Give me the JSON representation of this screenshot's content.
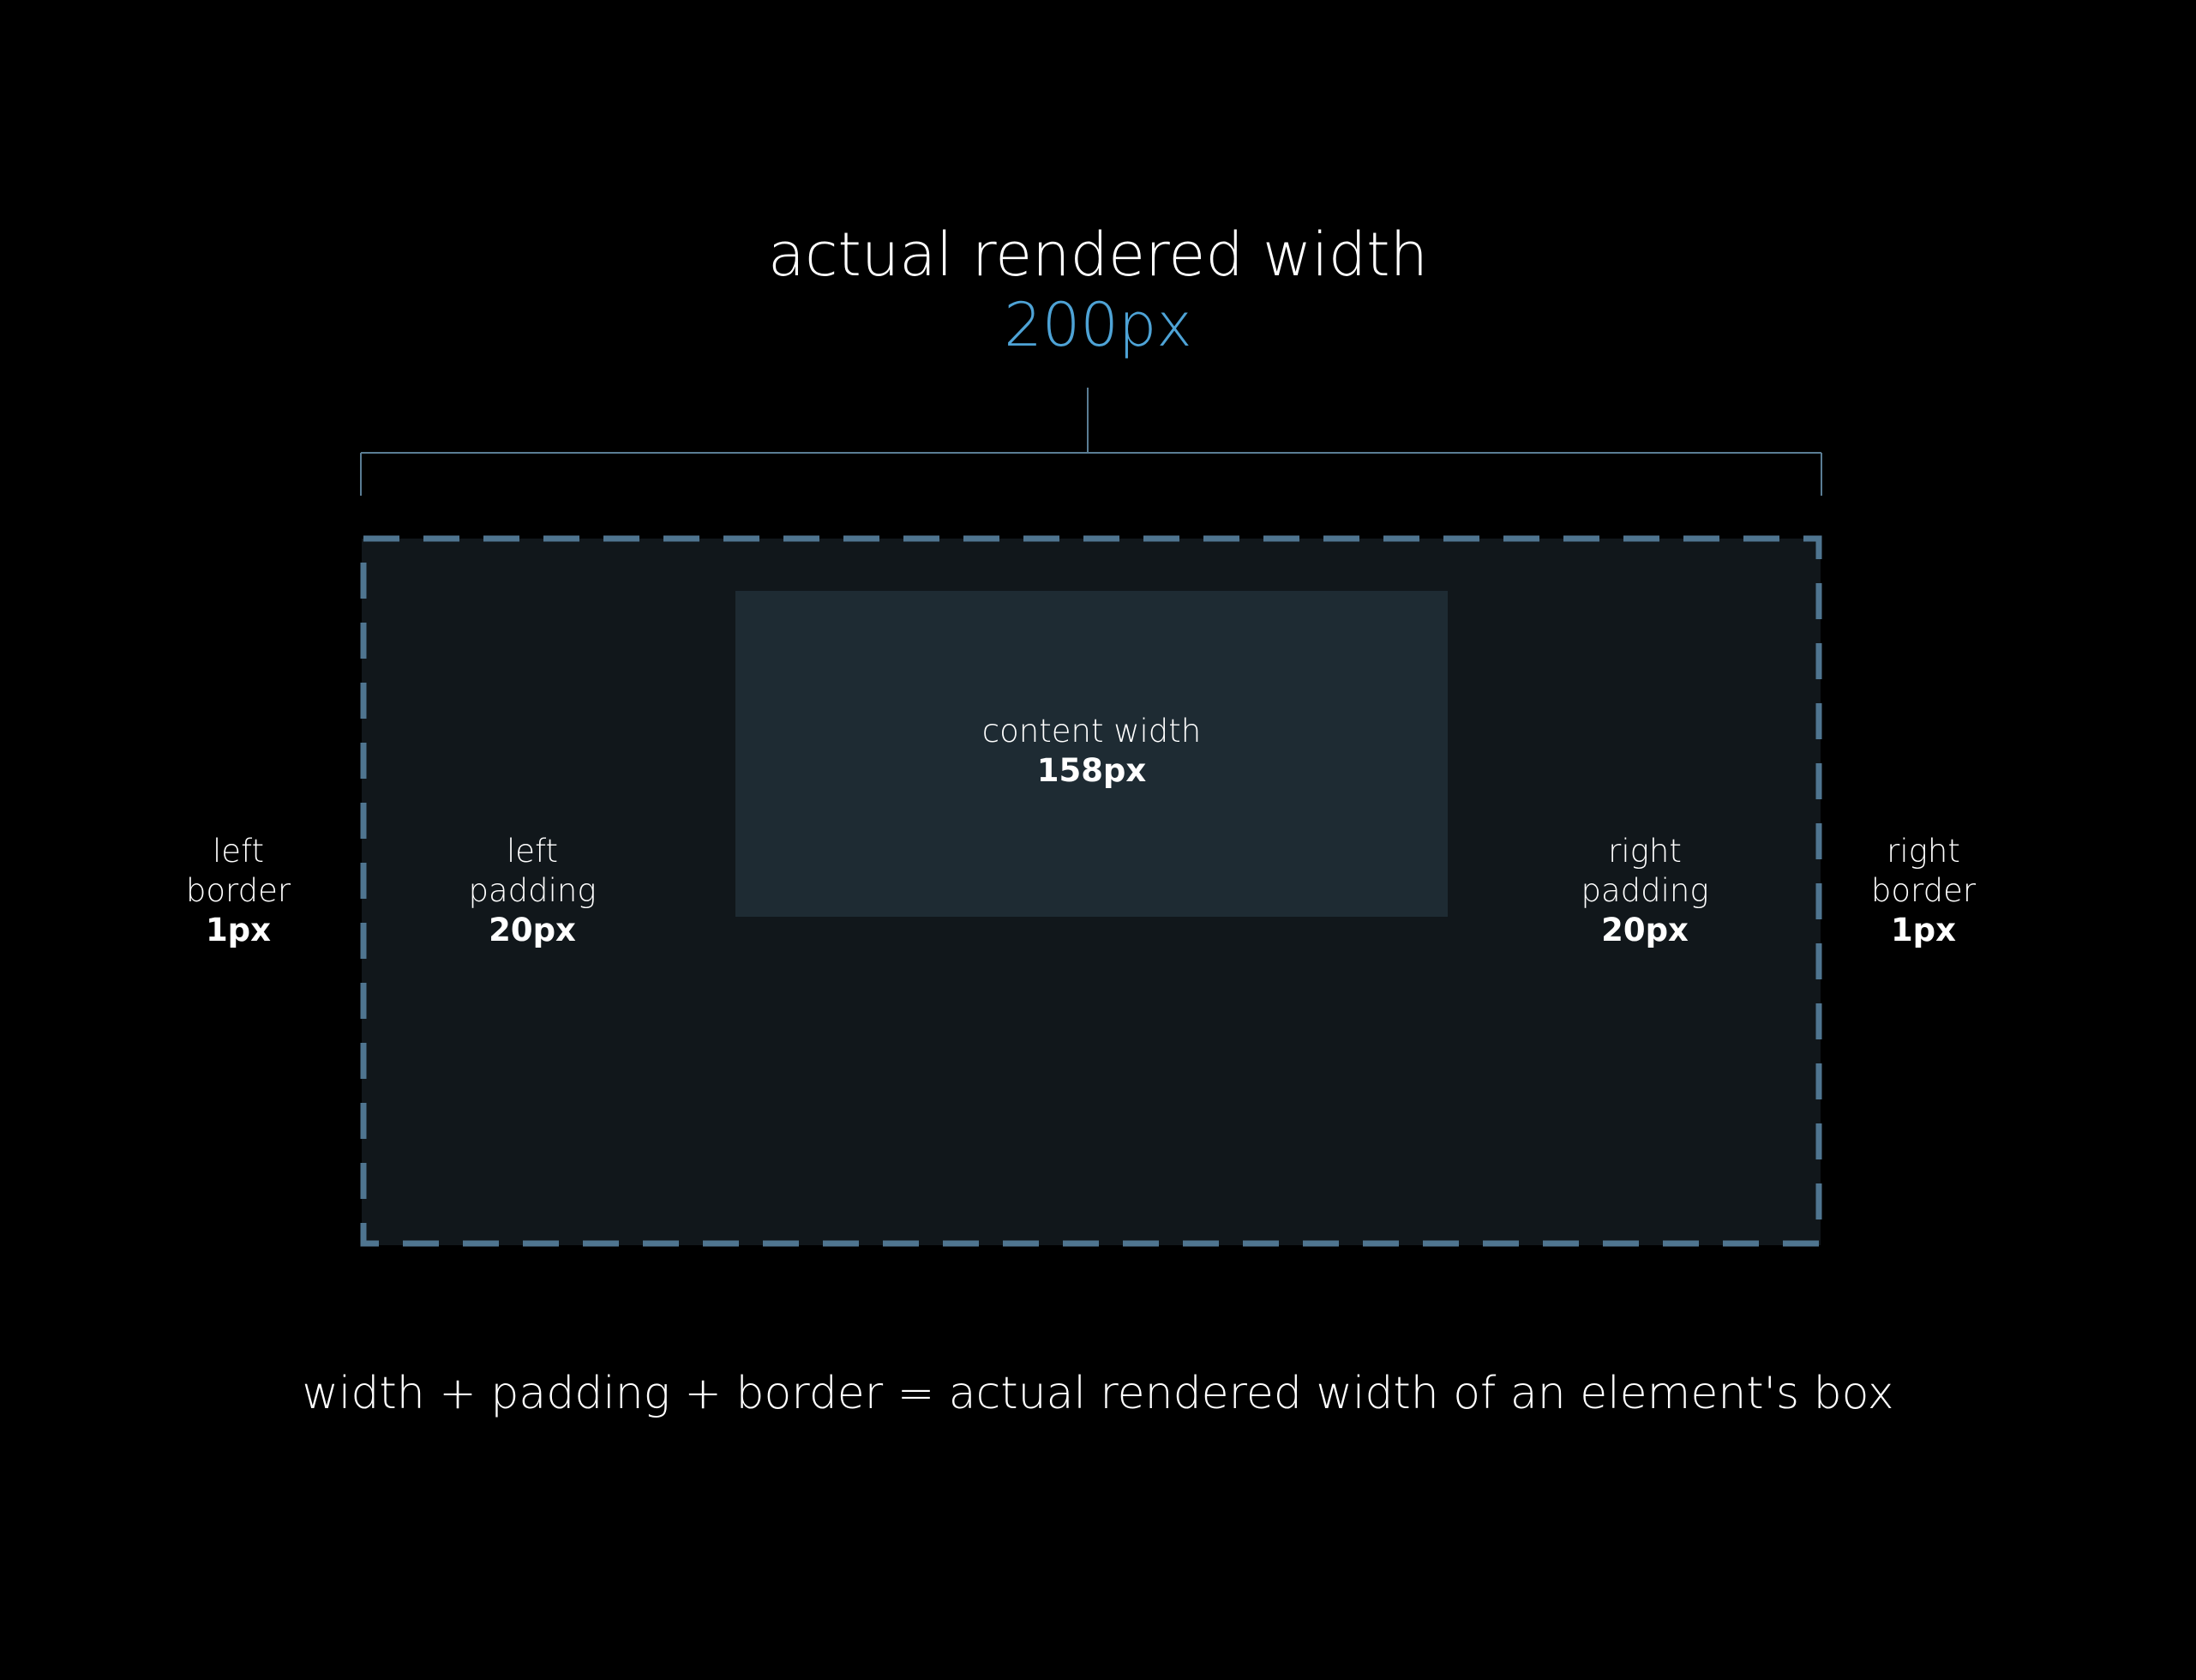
{
  "header": {
    "title": "actual rendered width",
    "value": "200px"
  },
  "labels": {
    "left_border": {
      "line1": "left",
      "line2": "border",
      "value": "1px"
    },
    "left_padding": {
      "line1": "left",
      "line2": "padding",
      "value": "20px"
    },
    "content": {
      "line1": "content width",
      "value": "158px"
    },
    "right_padding": {
      "line1": "right",
      "line2": "padding",
      "value": "20px"
    },
    "right_border": {
      "line1": "right",
      "line2": "border",
      "value": "1px"
    }
  },
  "footer": {
    "equation": "width + padding + border = actual rendered width of an element's box"
  },
  "colors": {
    "background": "#000000",
    "accent": "#4ea3d6",
    "border_dash": "#4f7590",
    "bracket": "#5a7d94",
    "padding_area": "#11171b",
    "content_area": "#1e2b33"
  }
}
